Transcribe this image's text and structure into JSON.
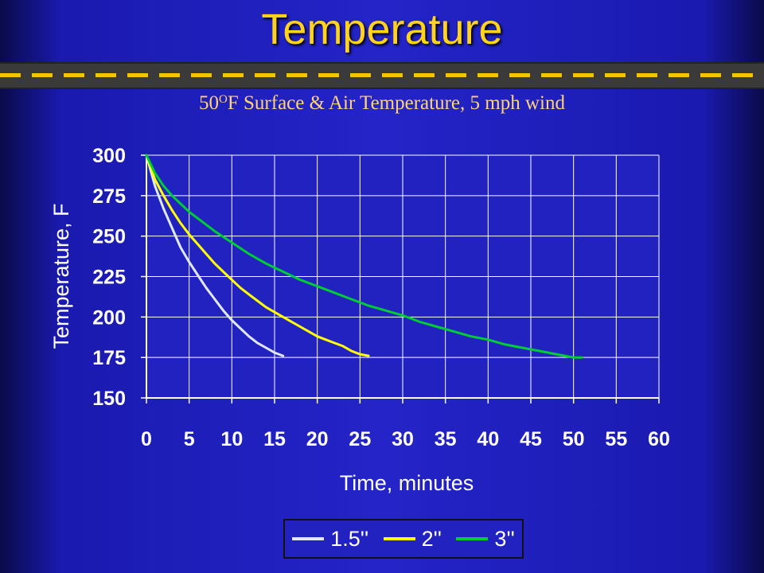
{
  "slide": {
    "title": "Temperature"
  },
  "chart_data": {
    "type": "line",
    "title_prefix": "50",
    "title_sup": "O",
    "title_rest": "F Surface & Air Temperature, 5 mph wind",
    "xlabel": "Time, minutes",
    "ylabel": "Temperature, F",
    "xlim": [
      0,
      60
    ],
    "ylim": [
      150,
      300
    ],
    "xticks": [
      0,
      5,
      10,
      15,
      20,
      25,
      30,
      35,
      40,
      45,
      50,
      55,
      60
    ],
    "yticks": [
      150,
      175,
      200,
      225,
      250,
      275,
      300
    ],
    "grid": true,
    "legend_position": "bottom",
    "series": [
      {
        "name": "1.5''",
        "color": "#dfe8ff",
        "x": [
          0,
          1,
          2,
          3,
          4,
          5,
          6,
          7,
          8,
          9,
          10,
          11,
          12,
          13,
          14,
          15,
          16
        ],
        "y": [
          300,
          281,
          267,
          255,
          243,
          234,
          226,
          218,
          211,
          204,
          198,
          193,
          188,
          184,
          181,
          178,
          176
        ]
      },
      {
        "name": "2''",
        "color": "#ffff00",
        "x": [
          0,
          1,
          2,
          3,
          4,
          5,
          6,
          7,
          8,
          9,
          10,
          11,
          12,
          13,
          14,
          15,
          16,
          17,
          18,
          19,
          20,
          21,
          22,
          23,
          24,
          25,
          26
        ],
        "y": [
          300,
          285,
          275,
          266,
          258,
          251,
          245,
          239,
          233,
          228,
          223,
          218,
          214,
          210,
          206,
          203,
          200,
          197,
          194,
          191,
          188,
          186,
          184,
          182,
          179,
          177,
          176
        ]
      },
      {
        "name": "3''",
        "color": "#00cc33",
        "x": [
          0,
          1,
          2,
          3,
          4,
          5,
          6,
          8,
          10,
          12,
          14,
          16,
          18,
          20,
          22,
          24,
          26,
          28,
          30,
          32,
          34,
          36,
          38,
          40,
          42,
          44,
          46,
          48,
          50,
          51
        ],
        "y": [
          300,
          289,
          281,
          275,
          270,
          265,
          261,
          253,
          246,
          239,
          233,
          228,
          223,
          219,
          215,
          211,
          207,
          204,
          201,
          197,
          194,
          191,
          188,
          186,
          183,
          181,
          179,
          177,
          175,
          175
        ]
      }
    ]
  }
}
